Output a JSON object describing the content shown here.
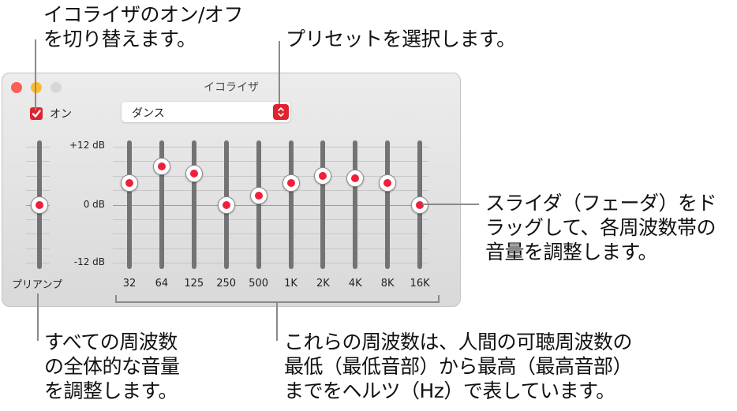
{
  "window": {
    "title": "イコライザ",
    "traffic_lights": {
      "close_color": "#fc5f57",
      "minimize_color": "#fdbc2e",
      "zoom_color": "#d7d7d7"
    },
    "enable_checkbox": {
      "label": "オン",
      "checked": true,
      "color": "#e0222e"
    },
    "preset_popup": {
      "value": "ダンス",
      "icon": "up-down-chevron-icon",
      "accent": "#e0222e"
    },
    "db_scale": {
      "top": "+12 dB",
      "middle": "0 dB",
      "bottom": "-12 dB"
    },
    "preamp": {
      "label": "プリアンプ",
      "value_db": 0
    },
    "bands": [
      {
        "label": "32",
        "value_db": 4.5
      },
      {
        "label": "64",
        "value_db": 8
      },
      {
        "label": "125",
        "value_db": 6.5
      },
      {
        "label": "250",
        "value_db": 0
      },
      {
        "label": "500",
        "value_db": 2
      },
      {
        "label": "1K",
        "value_db": 4.5
      },
      {
        "label": "2K",
        "value_db": 6
      },
      {
        "label": "4K",
        "value_db": 5.5
      },
      {
        "label": "8K",
        "value_db": 4.5
      },
      {
        "label": "16K",
        "value_db": 0
      }
    ]
  },
  "callouts": {
    "toggle": "イコライザのオン/オフ\nを切り替えます。",
    "preset": "プリセットを選択します。",
    "slider": "スライダ（フェーダ）をド\nラッグして、各周波数帯の\n音量を調整します。",
    "preamp": "すべての周波数\nの全体的な音量\nを調整します。",
    "frequencies": "これらの周波数は、人間の可聴周波数の\n最低（最低音部）から最高（最高音部）\nまでをヘルツ（Hz）で表しています。"
  }
}
